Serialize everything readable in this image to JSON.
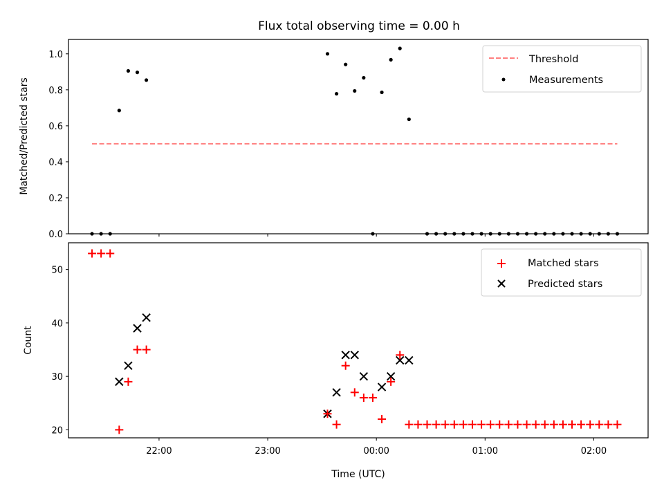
{
  "title": "Flux total observing time = 0.00 h",
  "x_ticks": [
    {
      "label": "22:00",
      "t": 0
    },
    {
      "label": "23:00",
      "t": 60
    },
    {
      "label": "00:00",
      "t": 120
    },
    {
      "label": "01:00",
      "t": 180
    },
    {
      "label": "02:00",
      "t": 240
    }
  ],
  "xlabel": "Time (UTC)",
  "top": {
    "ylabel": "Matched/Predicted stars",
    "ylim": [
      0.0,
      1.08
    ],
    "yticks": [
      {
        "label": "0.0",
        "v": 0.0
      },
      {
        "label": "0.2",
        "v": 0.2
      },
      {
        "label": "0.4",
        "v": 0.4
      },
      {
        "label": "0.6",
        "v": 0.6
      },
      {
        "label": "0.8",
        "v": 0.8
      },
      {
        "label": "1.0",
        "v": 1.0
      }
    ],
    "legend": {
      "threshold": "Threshold",
      "measurements": "Measurements"
    }
  },
  "bottom": {
    "ylabel": "Count",
    "ylim": [
      18.5,
      55
    ],
    "yticks": [
      {
        "label": "20",
        "v": 20
      },
      {
        "label": "30",
        "v": 30
      },
      {
        "label": "40",
        "v": 40
      },
      {
        "label": "50",
        "v": 50
      }
    ],
    "legend": {
      "matched": "Matched stars",
      "predicted": "Predicted stars"
    }
  },
  "chart_data": [
    {
      "type": "scatter",
      "xlabel": "",
      "ylabel": "Matched/Predicted stars",
      "x_unit": "minutes relative to 22:00 UTC",
      "xlim": [
        -50,
        270
      ],
      "ylim": [
        0.0,
        1.08
      ],
      "threshold": {
        "name": "Threshold",
        "value": 0.5,
        "x_range": [
          -37,
          253
        ],
        "color": "#ff7f7f",
        "style": "dashed"
      },
      "series": [
        {
          "name": "Measurements",
          "color": "#000000",
          "x": [
            -37,
            -32,
            -27,
            -22,
            -17,
            -12,
            -7,
            93,
            98,
            103,
            108,
            113,
            118,
            123,
            128,
            133,
            138,
            148,
            153,
            158,
            163,
            168,
            173,
            178,
            183,
            188,
            193,
            198,
            203,
            208,
            213,
            218,
            223,
            228,
            233,
            238,
            243,
            248,
            253
          ],
          "y": [
            0.0,
            0.0,
            0.0,
            0.685,
            0.905,
            0.897,
            0.854,
            1.0,
            0.778,
            0.941,
            0.794,
            0.867,
            0.0,
            0.786,
            0.967,
            1.03,
            0.636,
            0.0,
            0.0,
            0.0,
            0.0,
            0.0,
            0.0,
            0.0,
            0.0,
            0.0,
            0.0,
            0.0,
            0.0,
            0.0,
            0.0,
            0.0,
            0.0,
            0.0,
            0.0,
            0.0,
            0.0,
            0.0,
            0.0
          ]
        }
      ]
    },
    {
      "type": "scatter",
      "xlabel": "Time (UTC)",
      "ylabel": "Count",
      "x_unit": "minutes relative to 22:00 UTC",
      "xlim": [
        -50,
        270
      ],
      "ylim": [
        18.5,
        55
      ],
      "series": [
        {
          "name": "Matched stars",
          "marker": "plus",
          "color": "#ff0000",
          "x": [
            -37,
            -32,
            -27,
            -22,
            -17,
            -12,
            -7,
            93,
            98,
            103,
            108,
            113,
            118,
            123,
            128,
            133,
            138,
            143,
            148,
            153,
            158,
            163,
            168,
            173,
            178,
            183,
            188,
            193,
            198,
            203,
            208,
            213,
            218,
            223,
            228,
            233,
            238,
            243,
            248,
            253
          ],
          "y": [
            53,
            53,
            53,
            20,
            29,
            35,
            35,
            23,
            21,
            32,
            27,
            26,
            26,
            22,
            29,
            34,
            21,
            21,
            21,
            21,
            21,
            21,
            21,
            21,
            21,
            21,
            21,
            21,
            21,
            21,
            21,
            21,
            21,
            21,
            21,
            21,
            21,
            21,
            21,
            21
          ]
        },
        {
          "name": "Predicted stars",
          "marker": "x",
          "color": "#000000",
          "x": [
            -22,
            -17,
            -12,
            -7,
            93,
            98,
            103,
            108,
            113,
            123,
            128,
            133,
            138
          ],
          "y": [
            29,
            32,
            39,
            41,
            23,
            27,
            34,
            34,
            30,
            28,
            30,
            33,
            33
          ]
        }
      ]
    }
  ]
}
